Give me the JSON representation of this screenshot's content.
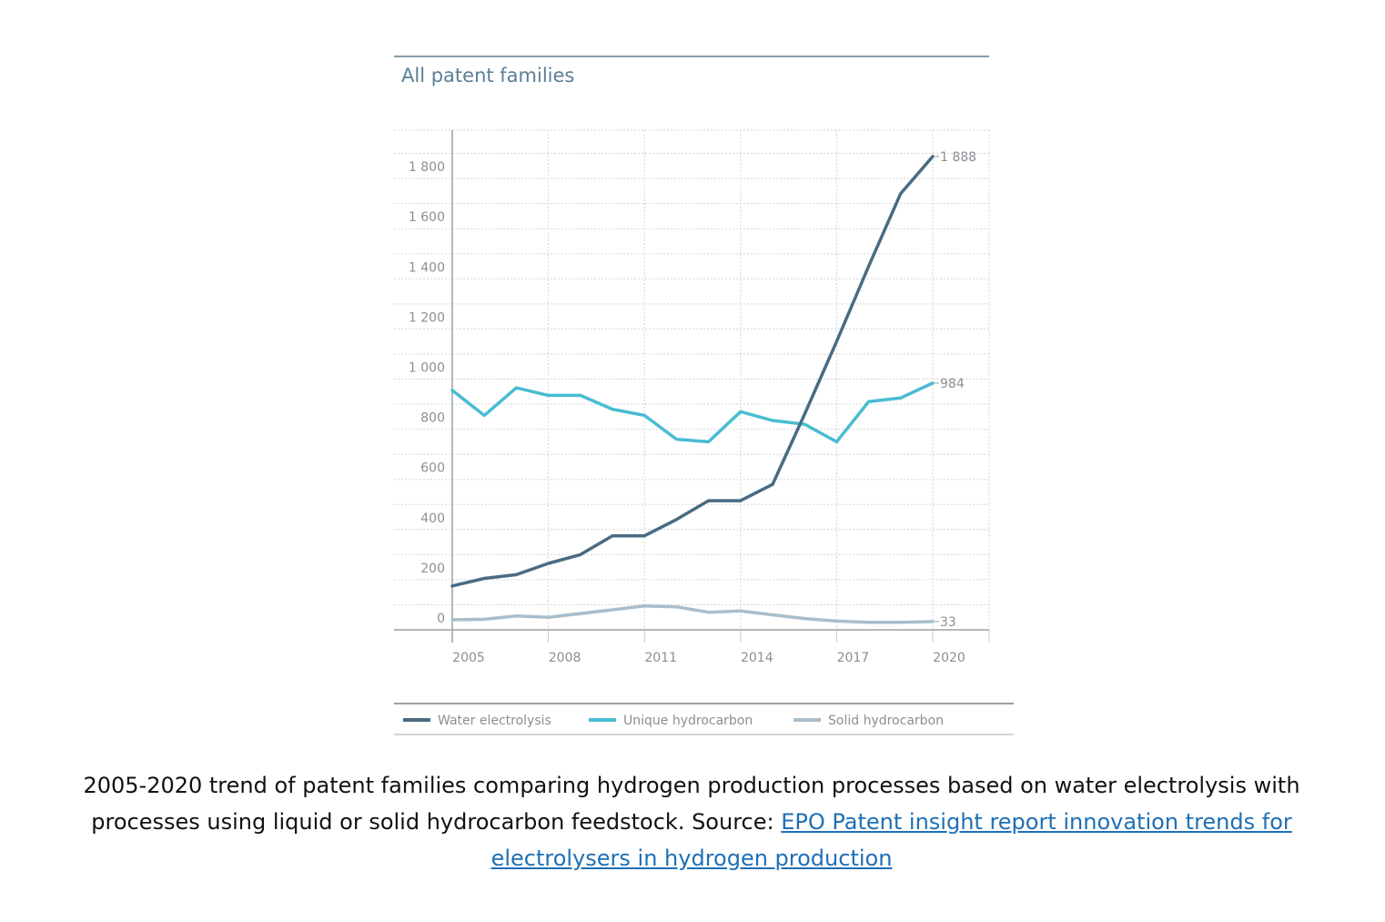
{
  "chart_data": {
    "type": "line",
    "title": "All patent families",
    "x": [
      2005,
      2006,
      2007,
      2008,
      2009,
      2010,
      2011,
      2012,
      2013,
      2014,
      2015,
      2016,
      2017,
      2018,
      2019,
      2020
    ],
    "x_ticks": [
      "2005",
      "2008",
      "2011",
      "2014",
      "2017",
      "2020"
    ],
    "y_ticks": [
      "0",
      "200",
      "400",
      "600",
      "800",
      "1 000",
      "1 200",
      "1 400",
      "1 600",
      "1 800"
    ],
    "ylim": [
      0,
      2000
    ],
    "xlim": [
      2005,
      2021
    ],
    "grid": true,
    "legend_position": "bottom",
    "series": [
      {
        "name": "Water electrolysis",
        "color": "#4a6b82",
        "values": [
          175,
          205,
          220,
          265,
          300,
          375,
          375,
          440,
          515,
          515,
          580,
          860,
          1150,
          1450,
          1740,
          1888
        ],
        "end_label": "1 888"
      },
      {
        "name": "Unique hydrocarbon",
        "color": "#49bcd2",
        "values": [
          955,
          855,
          965,
          935,
          935,
          880,
          855,
          760,
          750,
          870,
          835,
          820,
          750,
          910,
          925,
          984
        ],
        "end_label": "984"
      },
      {
        "name": "Solid hydrocarbon",
        "color": "#a9bdcc",
        "values": [
          40,
          42,
          55,
          50,
          65,
          80,
          95,
          92,
          70,
          75,
          60,
          45,
          35,
          30,
          30,
          33
        ],
        "end_label": "33"
      }
    ]
  },
  "caption": {
    "text": "2005-2020 trend of patent families comparing hydrogen production processes based on water electrolysis with processes using liquid or solid hydrocarbon feedstock. Source: ",
    "link_text": "EPO Patent insight report innovation trends for electrolysers in hydrogen production"
  }
}
